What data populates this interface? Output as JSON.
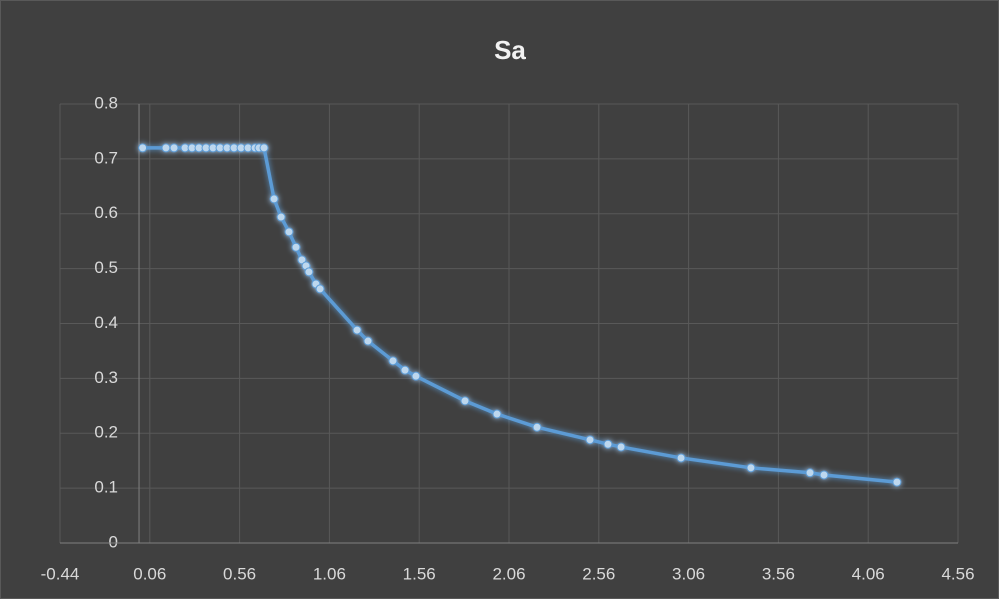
{
  "chart_data": {
    "type": "scatter",
    "title": "Sa",
    "series": [
      {
        "name": "Sa",
        "color": "#5b9bd5",
        "x": [
          0.02,
          0.15,
          0.195,
          0.256,
          0.295,
          0.334,
          0.373,
          0.412,
          0.451,
          0.49,
          0.529,
          0.568,
          0.607,
          0.646,
          0.668,
          0.696,
          0.752,
          0.791,
          0.835,
          0.874,
          0.907,
          0.93,
          0.946,
          0.985,
          1.008,
          1.214,
          1.275,
          1.414,
          1.481,
          1.542,
          1.815,
          1.993,
          2.216,
          2.511,
          2.611,
          2.684,
          3.018,
          3.407,
          3.736,
          3.814,
          4.22
        ],
        "values": [
          0.72,
          0.72,
          0.72,
          0.72,
          0.72,
          0.72,
          0.72,
          0.72,
          0.72,
          0.72,
          0.72,
          0.72,
          0.72,
          0.72,
          0.72,
          0.72,
          0.627,
          0.594,
          0.567,
          0.539,
          0.516,
          0.505,
          0.494,
          0.472,
          0.463,
          0.388,
          0.368,
          0.332,
          0.315,
          0.304,
          0.259,
          0.235,
          0.211,
          0.188,
          0.18,
          0.175,
          0.155,
          0.137,
          0.128,
          0.124,
          0.111
        ]
      }
    ],
    "xlim": [
      -0.44,
      4.56
    ],
    "xticks": [
      -0.44,
      0.06,
      0.56,
      1.06,
      1.56,
      2.06,
      2.56,
      3.06,
      3.56,
      4.06,
      4.56
    ],
    "ylim": [
      0,
      0.8
    ],
    "yticks": [
      0,
      0.1,
      0.2,
      0.3,
      0.4,
      0.5,
      0.6,
      0.7,
      0.8
    ],
    "grid": true
  }
}
